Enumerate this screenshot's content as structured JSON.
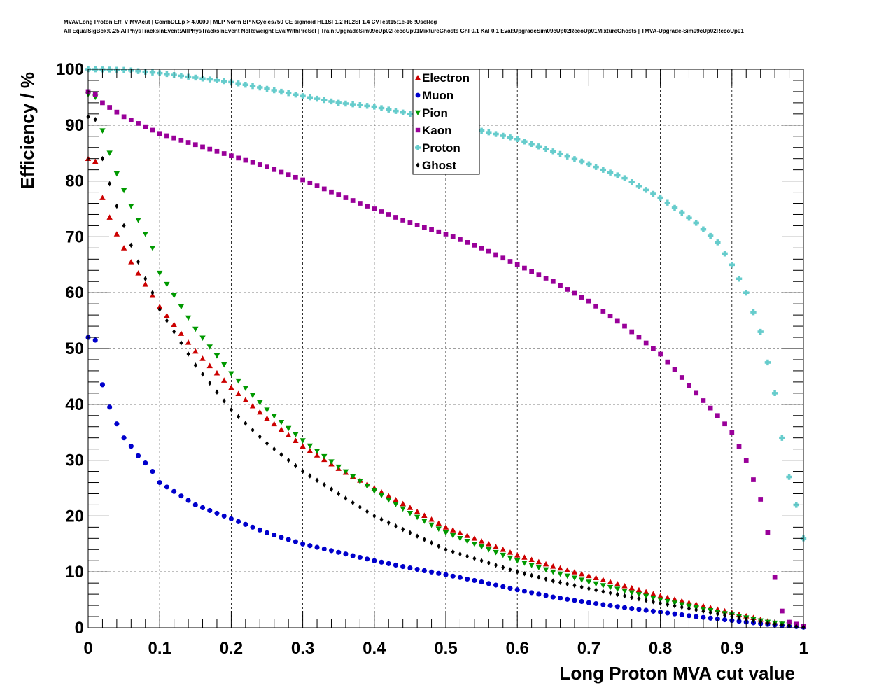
{
  "chart_data": {
    "type": "scatter",
    "title_lines": [
      "MVAVLong Proton Eff. V MVAcut | CombDLLp > 4.0000 | MLP Norm BP NCycles750 CE sigmoid HL1SF1.2 HL2SF1.4 CVTest15:1e-16 !UseReg",
      "All EqualSigBck:0.25 AllPhysTracksInEvent:AllPhysTracksInEvent NoReweight EvalWithPreSel | Train:UpgradeSim09cUp02RecoUp01MixtureGhosts GhF0.1 KaF0.1 Eval:UpgradeSim09cUp02RecoUp01MixtureGhosts | TMVA-Upgrade-Sim09cUp02RecoUp01"
    ],
    "xlabel": "Long Proton MVA cut value",
    "ylabel": "Efficiency / %",
    "xlim": [
      0,
      1
    ],
    "ylim": [
      0,
      100
    ],
    "x_ticks": [
      "0",
      "0.1",
      "0.2",
      "0.3",
      "0.4",
      "0.5",
      "0.6",
      "0.7",
      "0.8",
      "0.9",
      "1"
    ],
    "y_ticks": [
      "0",
      "10",
      "20",
      "30",
      "40",
      "50",
      "60",
      "70",
      "80",
      "90",
      "100"
    ],
    "grid": true,
    "legend_position": "top-center",
    "x_step": 0.01,
    "series": [
      {
        "name": "Electron",
        "color": "#cc0000",
        "marker": "triangle-up",
        "anchors": [
          [
            0,
            84
          ],
          [
            0.01,
            83.5
          ],
          [
            0.02,
            77
          ],
          [
            0.03,
            73.5
          ],
          [
            0.04,
            70.5
          ],
          [
            0.05,
            68
          ],
          [
            0.06,
            65.5
          ],
          [
            0.07,
            63.5
          ],
          [
            0.08,
            61.5
          ],
          [
            0.09,
            59.5
          ],
          [
            0.1,
            57.5
          ],
          [
            0.15,
            49.5
          ],
          [
            0.2,
            43
          ],
          [
            0.25,
            37.5
          ],
          [
            0.3,
            32.5
          ],
          [
            0.35,
            28.5
          ],
          [
            0.4,
            25
          ],
          [
            0.45,
            21.5
          ],
          [
            0.5,
            18
          ],
          [
            0.55,
            15.5
          ],
          [
            0.6,
            13
          ],
          [
            0.65,
            11
          ],
          [
            0.7,
            9.3
          ],
          [
            0.75,
            7.5
          ],
          [
            0.8,
            5.7
          ],
          [
            0.85,
            4.2
          ],
          [
            0.9,
            2.7
          ],
          [
            0.95,
            1.2
          ],
          [
            1,
            0.2
          ]
        ]
      },
      {
        "name": "Muon",
        "color": "#0000cc",
        "marker": "circle",
        "anchors": [
          [
            0,
            52
          ],
          [
            0.01,
            51.5
          ],
          [
            0.02,
            43.5
          ],
          [
            0.03,
            39.5
          ],
          [
            0.04,
            36.5
          ],
          [
            0.05,
            34
          ],
          [
            0.06,
            32.5
          ],
          [
            0.07,
            30.8
          ],
          [
            0.08,
            29.5
          ],
          [
            0.09,
            28
          ],
          [
            0.1,
            26
          ],
          [
            0.15,
            22
          ],
          [
            0.2,
            19.5
          ],
          [
            0.25,
            17
          ],
          [
            0.3,
            15
          ],
          [
            0.35,
            13.5
          ],
          [
            0.4,
            12
          ],
          [
            0.45,
            10.7
          ],
          [
            0.5,
            9.5
          ],
          [
            0.55,
            8.2
          ],
          [
            0.6,
            6.8
          ],
          [
            0.65,
            5.5
          ],
          [
            0.7,
            4.5
          ],
          [
            0.75,
            3.6
          ],
          [
            0.8,
            2.8
          ],
          [
            0.85,
            2
          ],
          [
            0.9,
            1.3
          ],
          [
            0.95,
            0.6
          ],
          [
            1,
            0.1
          ]
        ]
      },
      {
        "name": "Pion",
        "color": "#009900",
        "marker": "triangle-down",
        "anchors": [
          [
            0,
            95.5
          ],
          [
            0.01,
            95
          ],
          [
            0.02,
            89
          ],
          [
            0.03,
            85
          ],
          [
            0.04,
            81.3
          ],
          [
            0.05,
            78.3
          ],
          [
            0.06,
            75.5
          ],
          [
            0.07,
            73
          ],
          [
            0.08,
            70.5
          ],
          [
            0.09,
            68
          ],
          [
            0.1,
            63.5
          ],
          [
            0.15,
            53.5
          ],
          [
            0.2,
            45.5
          ],
          [
            0.25,
            39
          ],
          [
            0.3,
            33.5
          ],
          [
            0.35,
            28.8
          ],
          [
            0.4,
            24.5
          ],
          [
            0.45,
            20.5
          ],
          [
            0.5,
            17
          ],
          [
            0.55,
            14.5
          ],
          [
            0.6,
            12
          ],
          [
            0.65,
            10
          ],
          [
            0.7,
            8.2
          ],
          [
            0.75,
            6.6
          ],
          [
            0.8,
            5
          ],
          [
            0.85,
            3.6
          ],
          [
            0.9,
            2.3
          ],
          [
            0.95,
            1
          ],
          [
            1,
            0.2
          ]
        ]
      },
      {
        "name": "Kaon",
        "color": "#990099",
        "marker": "square",
        "anchors": [
          [
            0,
            96
          ],
          [
            0.01,
            95.5
          ],
          [
            0.02,
            94
          ],
          [
            0.05,
            91.5
          ],
          [
            0.1,
            88.5
          ],
          [
            0.15,
            86.5
          ],
          [
            0.2,
            84.5
          ],
          [
            0.25,
            82.5
          ],
          [
            0.3,
            80.2
          ],
          [
            0.35,
            77.5
          ],
          [
            0.4,
            75
          ],
          [
            0.45,
            72.5
          ],
          [
            0.5,
            70.5
          ],
          [
            0.55,
            68
          ],
          [
            0.6,
            65
          ],
          [
            0.65,
            62
          ],
          [
            0.7,
            58.5
          ],
          [
            0.75,
            54
          ],
          [
            0.8,
            49
          ],
          [
            0.85,
            42
          ],
          [
            0.88,
            38
          ],
          [
            0.9,
            35
          ],
          [
            0.92,
            30
          ],
          [
            0.94,
            23
          ],
          [
            0.95,
            17
          ],
          [
            0.96,
            9
          ],
          [
            0.97,
            3
          ],
          [
            0.98,
            1
          ],
          [
            1,
            0.3
          ]
        ]
      },
      {
        "name": "Proton",
        "color": "#66cccc",
        "marker": "cross",
        "anchors": [
          [
            0,
            100
          ],
          [
            0.05,
            99.9
          ],
          [
            0.1,
            99.3
          ],
          [
            0.15,
            98.5
          ],
          [
            0.2,
            97.7
          ],
          [
            0.25,
            96.5
          ],
          [
            0.3,
            95.2
          ],
          [
            0.35,
            94
          ],
          [
            0.4,
            93.3
          ],
          [
            0.45,
            92
          ],
          [
            0.5,
            91
          ],
          [
            0.55,
            89
          ],
          [
            0.6,
            87.5
          ],
          [
            0.65,
            85.3
          ],
          [
            0.7,
            83
          ],
          [
            0.75,
            80.5
          ],
          [
            0.8,
            77
          ],
          [
            0.85,
            72.5
          ],
          [
            0.88,
            69
          ],
          [
            0.9,
            65
          ],
          [
            0.92,
            60
          ],
          [
            0.94,
            53
          ],
          [
            0.96,
            42
          ],
          [
            0.97,
            34
          ],
          [
            0.98,
            27
          ],
          [
            0.99,
            22
          ],
          [
            1,
            16
          ]
        ]
      },
      {
        "name": "Ghost",
        "color": "#000000",
        "marker": "diamond",
        "anchors": [
          [
            0,
            91.5
          ],
          [
            0.01,
            91
          ],
          [
            0.02,
            84
          ],
          [
            0.03,
            79.5
          ],
          [
            0.04,
            75.5
          ],
          [
            0.05,
            72
          ],
          [
            0.06,
            68.5
          ],
          [
            0.07,
            65.5
          ],
          [
            0.08,
            62.5
          ],
          [
            0.09,
            60
          ],
          [
            0.1,
            57
          ],
          [
            0.15,
            47
          ],
          [
            0.2,
            39
          ],
          [
            0.25,
            33
          ],
          [
            0.3,
            28
          ],
          [
            0.35,
            24
          ],
          [
            0.4,
            20
          ],
          [
            0.45,
            17
          ],
          [
            0.5,
            14
          ],
          [
            0.55,
            12
          ],
          [
            0.6,
            10
          ],
          [
            0.65,
            8.4
          ],
          [
            0.7,
            7
          ],
          [
            0.75,
            5.7
          ],
          [
            0.8,
            4.4
          ],
          [
            0.85,
            3.2
          ],
          [
            0.9,
            2
          ],
          [
            0.95,
            0.8
          ],
          [
            1,
            0.1
          ]
        ]
      }
    ]
  }
}
